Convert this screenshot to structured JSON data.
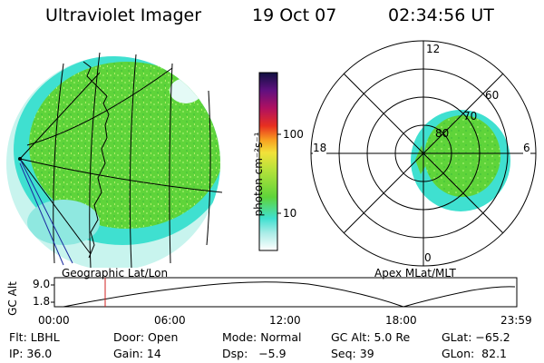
{
  "header": {
    "instrument": "Ultraviolet Imager",
    "date": "19 Oct 07",
    "time": "02:34:56 UT"
  },
  "colors": {
    "aurora_green": "#5fd43a",
    "aurora_cyan": "#3fe0d0",
    "pale_cyan": "#c8f4ee",
    "grid": "#000000",
    "time_marker": "#d02020"
  },
  "colorbar": {
    "label": "photon cm⁻²s⁻¹",
    "ticks": [
      "100",
      "10"
    ]
  },
  "geo_map": {
    "caption": "Geographic Lat/Lon"
  },
  "polar_plot": {
    "caption": "Apex MLat/MLT",
    "mlt_labels": {
      "top": "12",
      "right": "6",
      "bottom": "0",
      "left": "18"
    },
    "lat_labels": [
      "60",
      "70",
      "80"
    ]
  },
  "altitude_plot": {
    "axis_label": "GC Alt",
    "y_ticks": [
      "9.0",
      "1.8"
    ],
    "x_ticks": [
      "00:00",
      "06:00",
      "12:00",
      "18:00",
      "23:59"
    ]
  },
  "info_rows": [
    [
      {
        "name": "Flt",
        "text": "Flt: LBHL"
      },
      {
        "name": "Door",
        "text": "Door: Open"
      },
      {
        "name": "Mode",
        "text": "Mode: Normal"
      },
      {
        "name": "GC-Alt",
        "text": "GC Alt: 5.0 Re"
      },
      {
        "name": "GLat",
        "text": "GLat: −65.2"
      }
    ],
    [
      {
        "name": "IP",
        "text": "IP: 36.0"
      },
      {
        "name": "Gain",
        "text": "Gain: 14"
      },
      {
        "name": "Dsp",
        "text": "Dsp:   −5.9"
      },
      {
        "name": "Seq",
        "text": "Seq: 39"
      },
      {
        "name": "GLon",
        "text": "GLon:  82.1"
      }
    ]
  ]
}
